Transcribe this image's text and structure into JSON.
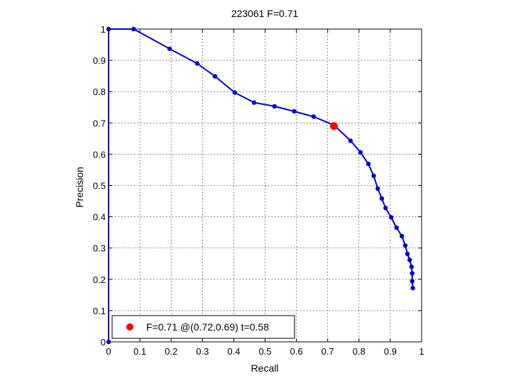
{
  "chart_data": {
    "type": "line",
    "title": "223061 F=0.71",
    "xlabel": "Recall",
    "ylabel": "Precision",
    "xlim": [
      0,
      1
    ],
    "ylim": [
      0,
      1
    ],
    "xticks": [
      "0",
      "0.1",
      "0.2",
      "0.3",
      "0.4",
      "0.5",
      "0.6",
      "0.7",
      "0.8",
      "0.9",
      "1"
    ],
    "yticks": [
      "0",
      "0.1",
      "0.2",
      "0.3",
      "0.4",
      "0.5",
      "0.6",
      "0.7",
      "0.8",
      "0.9",
      "1"
    ],
    "grid": true,
    "legend_position": "bottom-left",
    "series": [
      {
        "color": "#0000cc",
        "marker": "dot",
        "points": [
          [
            0.0,
            0.0
          ],
          [
            0.0,
            1.0
          ],
          [
            0.08,
            1.0
          ],
          [
            0.195,
            0.937
          ],
          [
            0.283,
            0.89
          ],
          [
            0.34,
            0.849
          ],
          [
            0.403,
            0.797
          ],
          [
            0.465,
            0.765
          ],
          [
            0.53,
            0.753
          ],
          [
            0.593,
            0.737
          ],
          [
            0.655,
            0.72
          ],
          [
            0.72,
            0.693
          ],
          [
            0.773,
            0.643
          ],
          [
            0.805,
            0.606
          ],
          [
            0.83,
            0.569
          ],
          [
            0.847,
            0.531
          ],
          [
            0.86,
            0.49
          ],
          [
            0.873,
            0.458
          ],
          [
            0.885,
            0.428
          ],
          [
            0.903,
            0.398
          ],
          [
            0.92,
            0.365
          ],
          [
            0.937,
            0.338
          ],
          [
            0.948,
            0.308
          ],
          [
            0.955,
            0.281
          ],
          [
            0.962,
            0.262
          ],
          [
            0.968,
            0.24
          ],
          [
            0.97,
            0.219
          ],
          [
            0.97,
            0.194
          ],
          [
            0.972,
            0.172
          ]
        ]
      }
    ],
    "highlight": {
      "x": 0.72,
      "y": 0.69,
      "color": "#ff0000",
      "label": "F=0.71 @(0.72,0.69) t=0.58"
    }
  }
}
